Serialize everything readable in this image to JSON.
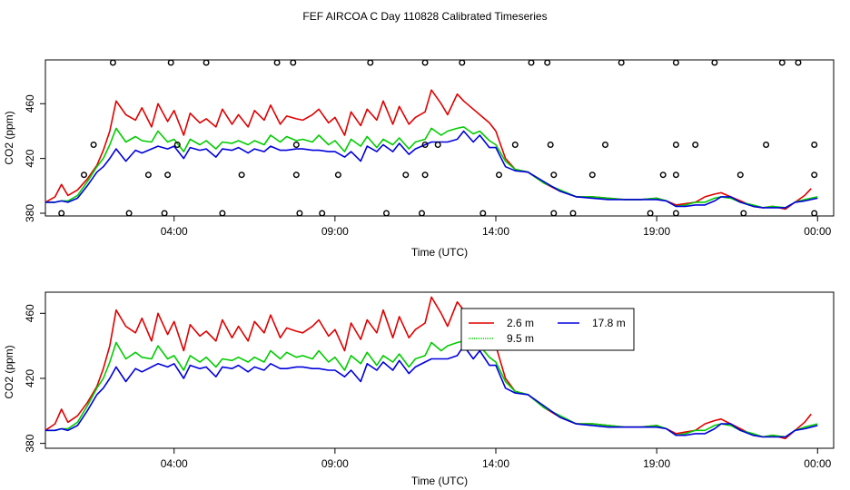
{
  "title": "FEF AIRCOA C  Day 110828  Calibrated Timeseries",
  "colors": {
    "s26": "#e00000",
    "s95": "#00cc00",
    "s178": "#0000dd",
    "axis": "#000000"
  },
  "chart_data": [
    {
      "type": "line",
      "id": "top",
      "xlabel": "Time (UTC)",
      "ylabel": "CO2 (ppm)",
      "xlim": [
        0,
        24.5
      ],
      "ylim": [
        378,
        492
      ],
      "xticks": [
        {
          "v": 4,
          "label": "04:00"
        },
        {
          "v": 9,
          "label": "09:00"
        },
        {
          "v": 14,
          "label": "14:00"
        },
        {
          "v": 19,
          "label": "19:00"
        },
        {
          "v": 24,
          "label": "00:00"
        }
      ],
      "yticks": [
        {
          "v": 380,
          "label": "380"
        },
        {
          "v": 420,
          "label": "420"
        },
        {
          "v": 460,
          "label": "460"
        }
      ],
      "markers": {
        "type": "open-circle",
        "points": [
          [
            2.1,
            490
          ],
          [
            3.9,
            490
          ],
          [
            5.0,
            490
          ],
          [
            7.2,
            490
          ],
          [
            7.7,
            490
          ],
          [
            10.1,
            490
          ],
          [
            11.8,
            490
          ],
          [
            12.95,
            490
          ],
          [
            15.1,
            490
          ],
          [
            15.6,
            490
          ],
          [
            17.9,
            490
          ],
          [
            19.6,
            490
          ],
          [
            20.8,
            490
          ],
          [
            22.9,
            490
          ],
          [
            23.4,
            490
          ],
          [
            1.5,
            430
          ],
          [
            4.1,
            430
          ],
          [
            7.8,
            430
          ],
          [
            11.8,
            430
          ],
          [
            12.2,
            430
          ],
          [
            14.6,
            430
          ],
          [
            15.7,
            430
          ],
          [
            17.4,
            430
          ],
          [
            19.6,
            430
          ],
          [
            20.2,
            430
          ],
          [
            22.4,
            430
          ],
          [
            23.9,
            430
          ],
          [
            1.2,
            408
          ],
          [
            3.2,
            408
          ],
          [
            3.8,
            408
          ],
          [
            6.1,
            408
          ],
          [
            7.8,
            408
          ],
          [
            9.1,
            408
          ],
          [
            11.2,
            408
          ],
          [
            11.8,
            408
          ],
          [
            14.1,
            408
          ],
          [
            15.8,
            408
          ],
          [
            17.0,
            408
          ],
          [
            19.2,
            408
          ],
          [
            19.6,
            408
          ],
          [
            21.6,
            408
          ],
          [
            23.9,
            408
          ],
          [
            0.5,
            380
          ],
          [
            2.6,
            380
          ],
          [
            3.7,
            380
          ],
          [
            5.5,
            380
          ],
          [
            7.9,
            380
          ],
          [
            8.6,
            380
          ],
          [
            10.6,
            380
          ],
          [
            11.7,
            380
          ],
          [
            13.6,
            380
          ],
          [
            15.8,
            380
          ],
          [
            16.4,
            380
          ],
          [
            18.8,
            380
          ],
          [
            19.6,
            380
          ],
          [
            21.7,
            380
          ],
          [
            23.9,
            380
          ]
        ]
      }
    },
    {
      "type": "line",
      "id": "bottom",
      "xlabel": "Time (UTC)",
      "ylabel": "CO2 (ppm)",
      "xlim": [
        0,
        24.5
      ],
      "ylim": [
        377,
        473
      ],
      "xticks": [
        {
          "v": 4,
          "label": "04:00"
        },
        {
          "v": 9,
          "label": "09:00"
        },
        {
          "v": 14,
          "label": "14:00"
        },
        {
          "v": 19,
          "label": "19:00"
        },
        {
          "v": 24,
          "label": "00:00"
        }
      ],
      "yticks": [
        {
          "v": 380,
          "label": "380"
        },
        {
          "v": 420,
          "label": "420"
        },
        {
          "v": 460,
          "label": "460"
        }
      ],
      "legend": {
        "position": "upper-middle-right",
        "entries": [
          {
            "label": "2.6 m",
            "series": "s26"
          },
          {
            "label": "17.8 m",
            "series": "s178"
          },
          {
            "label": "9.5 m",
            "series": "s95"
          }
        ]
      }
    }
  ],
  "series": {
    "s26": {
      "name": "2.6 m",
      "x": [
        0,
        0.3,
        0.5,
        0.7,
        1.0,
        1.3,
        1.6,
        1.8,
        2.0,
        2.2,
        2.5,
        2.8,
        3.0,
        3.3,
        3.5,
        3.8,
        4.0,
        4.3,
        4.5,
        4.8,
        5.0,
        5.3,
        5.5,
        5.8,
        6.0,
        6.3,
        6.5,
        6.8,
        7.0,
        7.3,
        7.5,
        7.8,
        8.0,
        8.3,
        8.5,
        8.8,
        9.0,
        9.3,
        9.5,
        9.8,
        10.0,
        10.3,
        10.5,
        10.8,
        11.0,
        11.3,
        11.5,
        11.8,
        12.0,
        12.3,
        12.5,
        12.8,
        13.0,
        13.3,
        13.5,
        13.8,
        14.0,
        14.3,
        14.6,
        15.0,
        15.5,
        16.0,
        16.5,
        17.0,
        17.5,
        18.0,
        18.5,
        19.0,
        19.3,
        19.6,
        19.9,
        20.2,
        20.5,
        20.8,
        21.0,
        21.3,
        21.6,
        22.0,
        22.3,
        22.6,
        23.0,
        23.3,
        23.6,
        23.8
      ],
      "y": [
        388,
        392,
        401,
        393,
        397,
        405,
        415,
        426,
        440,
        462,
        452,
        448,
        457,
        443,
        460,
        447,
        455,
        437,
        453,
        446,
        449,
        443,
        456,
        445,
        452,
        443,
        455,
        448,
        459,
        445,
        451,
        449,
        448,
        452,
        456,
        446,
        450,
        437,
        454,
        444,
        456,
        448,
        462,
        445,
        458,
        445,
        450,
        454,
        470,
        460,
        452,
        467,
        462,
        456,
        452,
        446,
        440,
        420,
        412,
        410,
        402,
        396,
        392,
        392,
        391,
        390,
        390,
        391,
        389,
        386,
        387,
        388,
        392,
        394,
        395,
        392,
        389,
        385,
        384,
        385,
        383,
        388,
        393,
        398
      ]
    },
    "s95": {
      "name": "9.5 m",
      "x": [
        0,
        0.3,
        0.5,
        0.7,
        1.0,
        1.3,
        1.6,
        1.8,
        2.0,
        2.2,
        2.5,
        2.8,
        3.0,
        3.3,
        3.5,
        3.8,
        4.0,
        4.3,
        4.5,
        4.8,
        5.0,
        5.3,
        5.5,
        5.8,
        6.0,
        6.3,
        6.5,
        6.8,
        7.0,
        7.3,
        7.5,
        7.8,
        8.0,
        8.3,
        8.5,
        8.8,
        9.0,
        9.3,
        9.5,
        9.8,
        10.0,
        10.3,
        10.5,
        10.8,
        11.0,
        11.3,
        11.5,
        11.8,
        12.0,
        12.3,
        12.5,
        12.8,
        13.0,
        13.3,
        13.5,
        13.8,
        14.0,
        14.3,
        14.6,
        15.0,
        15.5,
        16.0,
        16.5,
        17.0,
        17.5,
        18.0,
        18.5,
        19.0,
        19.3,
        19.6,
        19.9,
        20.2,
        20.5,
        20.8,
        21.0,
        21.3,
        21.6,
        22.0,
        22.3,
        22.6,
        23.0,
        23.3,
        23.6,
        23.8,
        24.0
      ],
      "y": [
        388,
        388,
        389,
        389,
        393,
        403,
        414,
        420,
        430,
        442,
        432,
        436,
        433,
        432,
        440,
        432,
        434,
        425,
        434,
        430,
        433,
        427,
        432,
        431,
        433,
        430,
        433,
        430,
        437,
        432,
        436,
        433,
        434,
        432,
        437,
        430,
        433,
        425,
        434,
        429,
        436,
        428,
        434,
        430,
        435,
        427,
        432,
        434,
        442,
        437,
        440,
        442,
        443,
        438,
        440,
        433,
        430,
        418,
        412,
        410,
        402,
        397,
        392,
        392,
        391,
        390,
        390,
        391,
        389,
        385,
        386,
        388,
        388,
        391,
        392,
        391,
        388,
        386,
        384,
        385,
        384,
        388,
        390,
        391,
        392
      ]
    },
    "s178": {
      "name": "17.8 m",
      "x": [
        0,
        0.3,
        0.5,
        0.7,
        1.0,
        1.3,
        1.6,
        1.8,
        2.0,
        2.2,
        2.5,
        2.8,
        3.0,
        3.3,
        3.5,
        3.8,
        4.0,
        4.3,
        4.5,
        4.8,
        5.0,
        5.3,
        5.5,
        5.8,
        6.0,
        6.3,
        6.5,
        6.8,
        7.0,
        7.3,
        7.5,
        7.8,
        8.0,
        8.3,
        8.5,
        8.8,
        9.0,
        9.3,
        9.5,
        9.8,
        10.0,
        10.3,
        10.5,
        10.8,
        11.0,
        11.3,
        11.5,
        11.8,
        12.0,
        12.3,
        12.5,
        12.8,
        13.0,
        13.3,
        13.5,
        13.8,
        14.0,
        14.3,
        14.6,
        15.0,
        15.5,
        16.0,
        16.5,
        17.0,
        17.5,
        18.0,
        18.5,
        19.0,
        19.3,
        19.6,
        19.9,
        20.2,
        20.5,
        20.8,
        21.0,
        21.3,
        21.6,
        22.0,
        22.3,
        22.6,
        23.0,
        23.3,
        23.6,
        23.8,
        24.0
      ],
      "y": [
        388,
        388,
        389,
        388,
        391,
        400,
        410,
        414,
        420,
        427,
        418,
        426,
        424,
        427,
        429,
        427,
        429,
        420,
        428,
        426,
        427,
        421,
        427,
        426,
        428,
        424,
        427,
        425,
        429,
        426,
        426,
        427,
        427,
        426,
        426,
        425,
        425,
        421,
        425,
        418,
        429,
        425,
        430,
        425,
        431,
        423,
        427,
        430,
        432,
        432,
        432,
        434,
        440,
        432,
        437,
        428,
        428,
        414,
        411,
        410,
        403,
        396,
        392,
        391,
        390,
        390,
        390,
        390,
        389,
        385,
        385,
        386,
        386,
        389,
        392,
        392,
        388,
        385,
        384,
        384,
        384,
        388,
        389,
        390,
        391
      ]
    }
  }
}
